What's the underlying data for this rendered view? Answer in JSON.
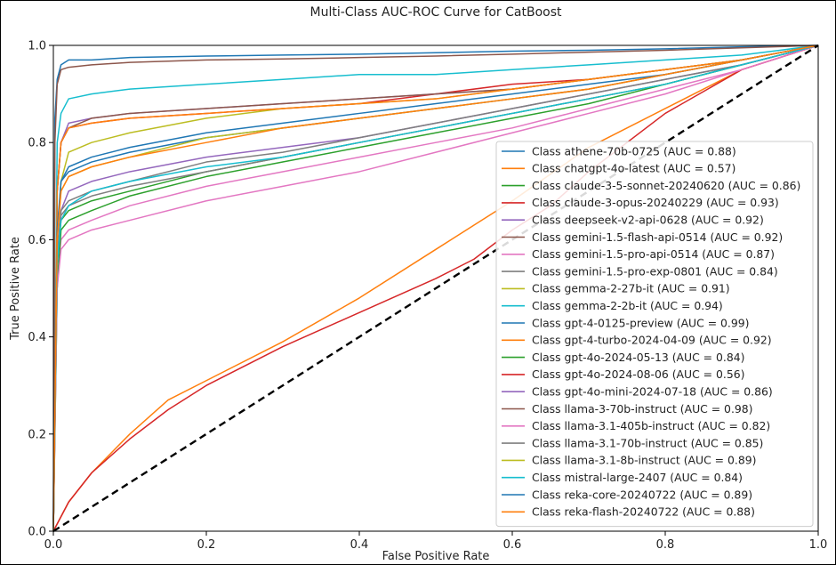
{
  "chart_data": {
    "type": "line",
    "title": "Multi-Class AUC-ROC Curve for CatBoost",
    "xlabel": "False Positive Rate",
    "ylabel": "True Positive Rate",
    "xlim": [
      0,
      1
    ],
    "ylim": [
      0,
      1
    ],
    "xticks": [
      "0.0",
      "0.2",
      "0.4",
      "0.6",
      "0.8",
      "1.0"
    ],
    "yticks": [
      "0.0",
      "0.2",
      "0.4",
      "0.6",
      "0.8",
      "1.0"
    ],
    "grid": false,
    "legend_position": "lower-right",
    "diagonal_reference": {
      "style": "dashed",
      "color": "#000000",
      "x": [
        0,
        1
      ],
      "y": [
        0,
        1
      ]
    },
    "series": [
      {
        "name": "Class athene-70b-0725 (AUC = 0.88)",
        "color": "#1f77b4",
        "x": [
          0,
          0.005,
          0.01,
          0.02,
          0.05,
          0.1,
          0.2,
          0.3,
          0.4,
          0.5,
          0.6,
          0.7,
          0.8,
          0.9,
          0.95,
          1.0
        ],
        "y": [
          0,
          0.6,
          0.72,
          0.74,
          0.76,
          0.78,
          0.81,
          0.83,
          0.85,
          0.87,
          0.89,
          0.91,
          0.94,
          0.97,
          0.985,
          1.0
        ]
      },
      {
        "name": "Class chatgpt-4o-latest (AUC = 0.57)",
        "color": "#ff7f0e",
        "x": [
          0,
          0.02,
          0.05,
          0.1,
          0.15,
          0.2,
          0.3,
          0.4,
          0.5,
          0.55,
          0.6,
          0.7,
          0.8,
          0.9,
          1.0
        ],
        "y": [
          0,
          0.06,
          0.12,
          0.2,
          0.27,
          0.31,
          0.39,
          0.48,
          0.58,
          0.63,
          0.68,
          0.79,
          0.87,
          0.95,
          1.0
        ]
      },
      {
        "name": "Class claude-3-5-sonnet-20240620 (AUC = 0.86)",
        "color": "#2ca02c",
        "x": [
          0,
          0.005,
          0.01,
          0.02,
          0.05,
          0.1,
          0.2,
          0.3,
          0.4,
          0.5,
          0.6,
          0.7,
          0.8,
          0.9,
          0.95,
          1.0
        ],
        "y": [
          0,
          0.55,
          0.64,
          0.66,
          0.68,
          0.7,
          0.74,
          0.77,
          0.8,
          0.83,
          0.86,
          0.89,
          0.92,
          0.96,
          0.98,
          1.0
        ]
      },
      {
        "name": "Class claude-3-opus-20240229 (AUC = 0.93)",
        "color": "#d62728",
        "x": [
          0,
          0.005,
          0.01,
          0.02,
          0.05,
          0.1,
          0.2,
          0.3,
          0.4,
          0.5,
          0.6,
          0.7,
          0.8,
          0.9,
          0.95,
          1.0
        ],
        "y": [
          0,
          0.7,
          0.8,
          0.83,
          0.84,
          0.85,
          0.86,
          0.87,
          0.88,
          0.9,
          0.92,
          0.93,
          0.95,
          0.97,
          0.985,
          1.0
        ]
      },
      {
        "name": "Class deepseek-v2-api-0628 (AUC = 0.92)",
        "color": "#9467bd",
        "x": [
          0,
          0.005,
          0.01,
          0.02,
          0.05,
          0.1,
          0.2,
          0.3,
          0.4,
          0.5,
          0.6,
          0.7,
          0.8,
          0.9,
          0.95,
          1.0
        ],
        "y": [
          0,
          0.7,
          0.8,
          0.84,
          0.85,
          0.86,
          0.87,
          0.88,
          0.89,
          0.9,
          0.91,
          0.93,
          0.95,
          0.97,
          0.985,
          1.0
        ]
      },
      {
        "name": "Class gemini-1.5-flash-api-0514 (AUC = 0.92)",
        "color": "#8c564b",
        "x": [
          0,
          0.005,
          0.01,
          0.02,
          0.05,
          0.1,
          0.2,
          0.3,
          0.4,
          0.5,
          0.6,
          0.7,
          0.8,
          0.9,
          0.95,
          1.0
        ],
        "y": [
          0,
          0.7,
          0.8,
          0.83,
          0.85,
          0.86,
          0.87,
          0.88,
          0.89,
          0.9,
          0.91,
          0.93,
          0.95,
          0.97,
          0.985,
          1.0
        ]
      },
      {
        "name": "Class gemini-1.5-pro-api-0514 (AUC = 0.87)",
        "color": "#e377c2",
        "x": [
          0,
          0.005,
          0.01,
          0.02,
          0.05,
          0.1,
          0.2,
          0.3,
          0.4,
          0.5,
          0.6,
          0.7,
          0.8,
          0.9,
          0.95,
          1.0
        ],
        "y": [
          0,
          0.52,
          0.6,
          0.62,
          0.64,
          0.67,
          0.71,
          0.74,
          0.77,
          0.8,
          0.83,
          0.87,
          0.91,
          0.95,
          0.975,
          1.0
        ]
      },
      {
        "name": "Class gemini-1.5-pro-exp-0801 (AUC = 0.84)",
        "color": "#7f7f7f",
        "x": [
          0,
          0.005,
          0.01,
          0.02,
          0.05,
          0.1,
          0.2,
          0.3,
          0.4,
          0.5,
          0.6,
          0.7,
          0.8,
          0.9,
          0.95,
          1.0
        ],
        "y": [
          0,
          0.55,
          0.65,
          0.67,
          0.69,
          0.71,
          0.74,
          0.77,
          0.8,
          0.83,
          0.86,
          0.89,
          0.92,
          0.96,
          0.98,
          1.0
        ]
      },
      {
        "name": "Class gemma-2-27b-it (AUC = 0.91)",
        "color": "#bcbd22",
        "x": [
          0,
          0.005,
          0.01,
          0.02,
          0.05,
          0.1,
          0.2,
          0.3,
          0.4,
          0.5,
          0.6,
          0.7,
          0.8,
          0.9,
          0.95,
          1.0
        ],
        "y": [
          0,
          0.6,
          0.72,
          0.78,
          0.8,
          0.82,
          0.85,
          0.87,
          0.88,
          0.89,
          0.91,
          0.93,
          0.95,
          0.97,
          0.985,
          1.0
        ]
      },
      {
        "name": "Class gemma-2-2b-it (AUC = 0.94)",
        "color": "#17becf",
        "x": [
          0,
          0.005,
          0.01,
          0.02,
          0.05,
          0.1,
          0.2,
          0.3,
          0.4,
          0.5,
          0.6,
          0.7,
          0.8,
          0.9,
          0.95,
          1.0
        ],
        "y": [
          0,
          0.8,
          0.86,
          0.89,
          0.9,
          0.91,
          0.92,
          0.93,
          0.94,
          0.94,
          0.95,
          0.96,
          0.97,
          0.98,
          0.99,
          1.0
        ]
      },
      {
        "name": "Class gpt-4-0125-preview (AUC = 0.99)",
        "color": "#1f77b4",
        "x": [
          0,
          0.002,
          0.005,
          0.01,
          0.02,
          0.05,
          0.1,
          0.2,
          0.3,
          0.4,
          0.5,
          0.6,
          0.7,
          0.8,
          0.9,
          1.0
        ],
        "y": [
          0,
          0.85,
          0.93,
          0.96,
          0.97,
          0.97,
          0.975,
          0.978,
          0.98,
          0.982,
          0.985,
          0.988,
          0.99,
          0.993,
          0.997,
          1.0
        ]
      },
      {
        "name": "Class gpt-4-turbo-2024-04-09 (AUC = 0.92)",
        "color": "#ff7f0e",
        "x": [
          0,
          0.005,
          0.01,
          0.02,
          0.05,
          0.1,
          0.2,
          0.3,
          0.4,
          0.5,
          0.6,
          0.7,
          0.8,
          0.9,
          0.95,
          1.0
        ],
        "y": [
          0,
          0.7,
          0.8,
          0.83,
          0.84,
          0.85,
          0.86,
          0.87,
          0.88,
          0.89,
          0.91,
          0.93,
          0.95,
          0.97,
          0.985,
          1.0
        ]
      },
      {
        "name": "Class gpt-4o-2024-05-13 (AUC = 0.84)",
        "color": "#2ca02c",
        "x": [
          0,
          0.005,
          0.01,
          0.02,
          0.05,
          0.1,
          0.2,
          0.3,
          0.4,
          0.5,
          0.6,
          0.7,
          0.8,
          0.9,
          0.95,
          1.0
        ],
        "y": [
          0,
          0.5,
          0.62,
          0.64,
          0.66,
          0.69,
          0.73,
          0.76,
          0.79,
          0.82,
          0.85,
          0.88,
          0.92,
          0.96,
          0.98,
          1.0
        ]
      },
      {
        "name": "Class gpt-4o-2024-08-06 (AUC = 0.56)",
        "color": "#d62728",
        "x": [
          0,
          0.02,
          0.05,
          0.1,
          0.15,
          0.2,
          0.3,
          0.4,
          0.5,
          0.55,
          0.6,
          0.65,
          0.7,
          0.8,
          0.9,
          1.0
        ],
        "y": [
          0,
          0.06,
          0.12,
          0.19,
          0.25,
          0.3,
          0.38,
          0.45,
          0.52,
          0.56,
          0.62,
          0.67,
          0.74,
          0.86,
          0.95,
          1.0
        ]
      },
      {
        "name": "Class gpt-4o-mini-2024-07-18 (AUC = 0.86)",
        "color": "#9467bd",
        "x": [
          0,
          0.005,
          0.01,
          0.02,
          0.05,
          0.1,
          0.2,
          0.3,
          0.4,
          0.5,
          0.6,
          0.7,
          0.8,
          0.9,
          0.95,
          1.0
        ],
        "y": [
          0,
          0.56,
          0.66,
          0.7,
          0.72,
          0.74,
          0.77,
          0.79,
          0.81,
          0.84,
          0.87,
          0.9,
          0.93,
          0.96,
          0.98,
          1.0
        ]
      },
      {
        "name": "Class llama-3-70b-instruct (AUC = 0.98)",
        "color": "#8c564b",
        "x": [
          0,
          0.002,
          0.005,
          0.01,
          0.02,
          0.05,
          0.1,
          0.2,
          0.3,
          0.4,
          0.5,
          0.6,
          0.7,
          0.8,
          0.9,
          1.0
        ],
        "y": [
          0,
          0.8,
          0.92,
          0.95,
          0.955,
          0.96,
          0.965,
          0.97,
          0.972,
          0.975,
          0.978,
          0.982,
          0.986,
          0.99,
          0.995,
          1.0
        ]
      },
      {
        "name": "Class llama-3.1-405b-instruct (AUC = 0.82)",
        "color": "#e377c2",
        "x": [
          0,
          0.005,
          0.01,
          0.02,
          0.05,
          0.1,
          0.2,
          0.3,
          0.4,
          0.5,
          0.6,
          0.7,
          0.8,
          0.9,
          0.95,
          1.0
        ],
        "y": [
          0,
          0.5,
          0.58,
          0.6,
          0.62,
          0.64,
          0.68,
          0.71,
          0.74,
          0.78,
          0.82,
          0.86,
          0.9,
          0.95,
          0.975,
          1.0
        ]
      },
      {
        "name": "Class llama-3.1-70b-instruct (AUC = 0.85)",
        "color": "#7f7f7f",
        "x": [
          0,
          0.005,
          0.01,
          0.02,
          0.05,
          0.1,
          0.2,
          0.3,
          0.4,
          0.5,
          0.6,
          0.7,
          0.8,
          0.9,
          0.95,
          1.0
        ],
        "y": [
          0,
          0.56,
          0.66,
          0.68,
          0.7,
          0.72,
          0.76,
          0.78,
          0.81,
          0.84,
          0.87,
          0.9,
          0.93,
          0.96,
          0.98,
          1.0
        ]
      },
      {
        "name": "Class llama-3.1-8b-instruct (AUC = 0.89)",
        "color": "#bcbd22",
        "x": [
          0,
          0.005,
          0.01,
          0.02,
          0.05,
          0.1,
          0.2,
          0.3,
          0.4,
          0.5,
          0.6,
          0.7,
          0.8,
          0.9,
          0.95,
          1.0
        ],
        "y": [
          0,
          0.6,
          0.7,
          0.73,
          0.75,
          0.77,
          0.81,
          0.83,
          0.85,
          0.87,
          0.89,
          0.91,
          0.94,
          0.97,
          0.985,
          1.0
        ]
      },
      {
        "name": "Class mistral-large-2407 (AUC = 0.84)",
        "color": "#17becf",
        "x": [
          0,
          0.005,
          0.01,
          0.02,
          0.05,
          0.1,
          0.2,
          0.3,
          0.4,
          0.5,
          0.6,
          0.7,
          0.8,
          0.9,
          0.95,
          1.0
        ],
        "y": [
          0,
          0.55,
          0.64,
          0.67,
          0.7,
          0.72,
          0.75,
          0.77,
          0.8,
          0.83,
          0.86,
          0.89,
          0.92,
          0.96,
          0.98,
          1.0
        ]
      },
      {
        "name": "Class reka-core-20240722 (AUC = 0.89)",
        "color": "#1f77b4",
        "x": [
          0,
          0.005,
          0.01,
          0.02,
          0.05,
          0.1,
          0.2,
          0.3,
          0.4,
          0.5,
          0.6,
          0.7,
          0.8,
          0.9,
          0.95,
          1.0
        ],
        "y": [
          0,
          0.62,
          0.72,
          0.75,
          0.77,
          0.79,
          0.82,
          0.84,
          0.86,
          0.88,
          0.9,
          0.92,
          0.94,
          0.97,
          0.985,
          1.0
        ]
      },
      {
        "name": "Class reka-flash-20240722 (AUC = 0.88)",
        "color": "#ff7f0e",
        "x": [
          0,
          0.005,
          0.01,
          0.02,
          0.05,
          0.1,
          0.2,
          0.3,
          0.4,
          0.5,
          0.6,
          0.7,
          0.8,
          0.9,
          0.95,
          1.0
        ],
        "y": [
          0,
          0.6,
          0.7,
          0.73,
          0.75,
          0.77,
          0.8,
          0.83,
          0.85,
          0.87,
          0.89,
          0.91,
          0.94,
          0.97,
          0.985,
          1.0
        ]
      }
    ]
  }
}
